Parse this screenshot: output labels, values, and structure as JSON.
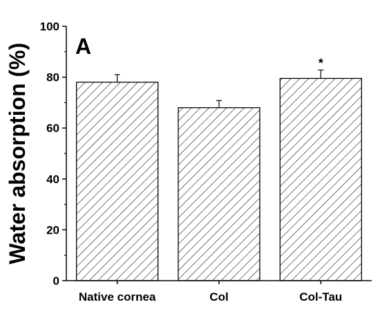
{
  "chart_data": {
    "type": "bar",
    "panel_label": "A",
    "categories": [
      "Native cornea",
      "Col",
      "Col-Tau"
    ],
    "values": [
      78,
      68,
      79.5
    ],
    "errors": [
      3,
      2.8,
      3.3
    ],
    "annotations": [
      "",
      "",
      "*"
    ],
    "ylabel": "Water absorption (%)",
    "xlabel": "",
    "ylim": [
      0,
      100
    ],
    "yticks": [
      0,
      20,
      40,
      60,
      80,
      100
    ],
    "grid": false,
    "bar_fill": "diagonal-hatch",
    "colors": {
      "stroke": "#000000",
      "background": "#ffffff"
    }
  }
}
